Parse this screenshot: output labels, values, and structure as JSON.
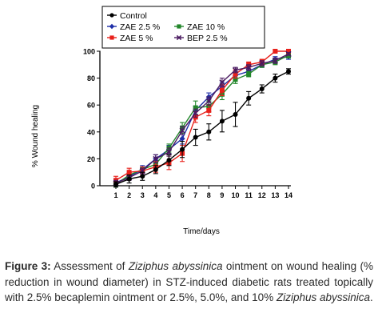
{
  "chart_data": {
    "type": "line",
    "ylabel": "% Wound healing",
    "xlabel": "Time/days",
    "x": [
      1,
      2,
      3,
      4,
      5,
      6,
      7,
      8,
      9,
      10,
      11,
      12,
      13,
      14
    ],
    "ylim": [
      0,
      100
    ],
    "yticks": [
      0,
      20,
      40,
      60,
      80,
      100
    ],
    "legend_position": "top",
    "series": [
      {
        "name": "Control",
        "color": "#000000",
        "marker": "circle",
        "values": [
          1,
          5,
          7,
          12,
          19,
          27,
          36,
          40,
          48,
          53,
          65,
          72,
          80,
          85
        ],
        "errors": [
          2,
          3,
          3,
          3,
          4,
          6,
          6,
          6,
          8,
          9,
          5,
          3,
          3,
          2
        ]
      },
      {
        "name": "ZAE 2.5 %",
        "color": "#1f2fa8",
        "marker": "diamond",
        "values": [
          2,
          7,
          12,
          20,
          27,
          35,
          56,
          66,
          74,
          82,
          85,
          90,
          94,
          96
        ],
        "errors": [
          2,
          2,
          3,
          3,
          3,
          4,
          3,
          3,
          3,
          3,
          2,
          2,
          2,
          2
        ]
      },
      {
        "name": "ZAE 10 %",
        "color": "#22862a",
        "marker": "square",
        "values": [
          1,
          8,
          12,
          16,
          28,
          43,
          58,
          59,
          68,
          79,
          83,
          90,
          92,
          97
        ],
        "errors": [
          2,
          2,
          2,
          2,
          3,
          4,
          5,
          4,
          4,
          3,
          2,
          2,
          2,
          2
        ]
      },
      {
        "name": "ZAE 5 %",
        "color": "#e8201a",
        "marker": "square",
        "values": [
          4,
          10,
          11,
          14,
          17,
          24,
          51,
          56,
          71,
          83,
          90,
          92,
          100,
          100
        ],
        "errors": [
          3,
          3,
          3,
          4,
          5,
          6,
          4,
          4,
          4,
          3,
          2,
          2,
          1,
          1
        ]
      },
      {
        "name": "BEP 2.5 %",
        "color": "#4a1a60",
        "marker": "x",
        "values": [
          2,
          6,
          11,
          20,
          25,
          41,
          54,
          63,
          77,
          86,
          88,
          91,
          93,
          98
        ],
        "errors": [
          2,
          2,
          2,
          3,
          3,
          3,
          3,
          3,
          3,
          2,
          2,
          2,
          2,
          1
        ]
      }
    ]
  },
  "caption": {
    "label": "Figure 3:",
    "part1": " Assessment of ",
    "italic1": "Ziziphus abyssinica",
    "part2": " ointment on wound healing (% reduction in wound diameter) in STZ-induced diabetic rats treated topically with 2.5% becaplemin ointment or 2.5%, 5.0%, and 10% ",
    "italic2": "Ziziphus abyssinica",
    "part3": "."
  }
}
